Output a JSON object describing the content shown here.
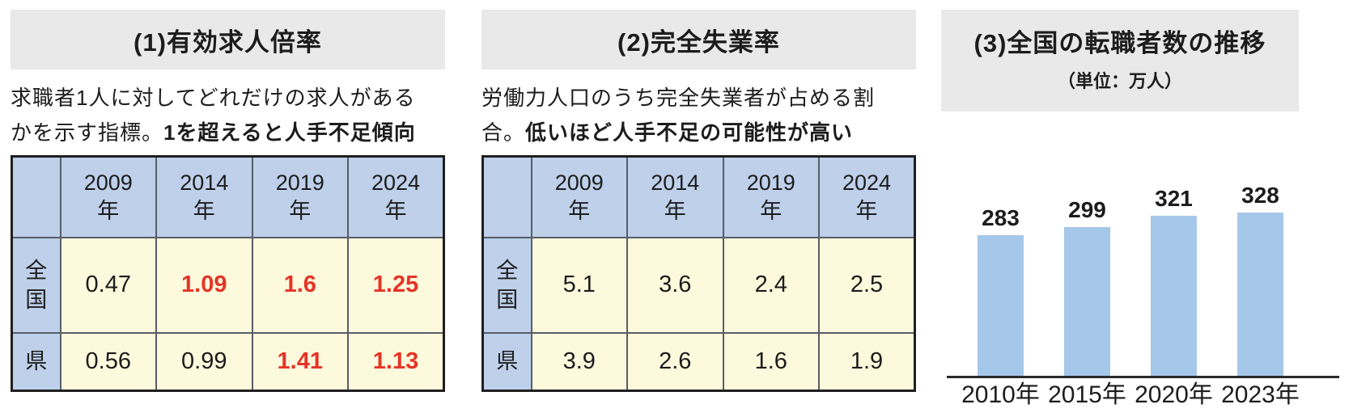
{
  "colors": {
    "panel_header_bg": "#e9e9e9",
    "table_header_bg": "#bed0ea",
    "table_cell_bg": "#fdf9dc",
    "highlight_red": "#e53427",
    "bar_fill": "#a5c7e9",
    "text": "#1c1c1c"
  },
  "panels": [
    {
      "desc_line1": "求職者1人に対してどれだけの求人がある",
      "desc_line2_plain": "かを示す指標。",
      "desc_line2_bold": "1を超えると人手不足傾向"
    },
    {
      "desc_line1": "労働力人口のうち完全失業者が占める割",
      "desc_line2_plain": "合。",
      "desc_line2_bold": "低いほど人手不足の可能性が高い"
    }
  ],
  "chart_data": [
    {
      "type": "table",
      "title": "(1)有効求人倍率",
      "col_years": [
        "2009",
        "2014",
        "2019",
        "2024"
      ],
      "col_suffix": "年",
      "rows": [
        {
          "label": "全国",
          "cells": [
            {
              "v": "0.47",
              "red": false
            },
            {
              "v": "1.09",
              "red": true
            },
            {
              "v": "1.6",
              "red": true
            },
            {
              "v": "1.25",
              "red": true
            }
          ]
        },
        {
          "label": "県",
          "cells": [
            {
              "v": "0.56",
              "red": false
            },
            {
              "v": "0.99",
              "red": false
            },
            {
              "v": "1.41",
              "red": true
            },
            {
              "v": "1.13",
              "red": true
            }
          ]
        }
      ]
    },
    {
      "type": "table",
      "title": "(2)完全失業率",
      "col_years": [
        "2009",
        "2014",
        "2019",
        "2024"
      ],
      "col_suffix": "年",
      "rows": [
        {
          "label": "全国",
          "cells": [
            {
              "v": "5.1",
              "red": false
            },
            {
              "v": "3.6",
              "red": false
            },
            {
              "v": "2.4",
              "red": false
            },
            {
              "v": "2.5",
              "red": false
            }
          ]
        },
        {
          "label": "県",
          "cells": [
            {
              "v": "3.9",
              "red": false
            },
            {
              "v": "2.6",
              "red": false
            },
            {
              "v": "1.6",
              "red": false
            },
            {
              "v": "1.9",
              "red": false
            }
          ]
        }
      ]
    },
    {
      "type": "bar",
      "title": "(3)全国の転職者数の推移",
      "unit_label": "（単位：万人）",
      "categories": [
        "2010年",
        "2015年",
        "2020年",
        "2023年"
      ],
      "values": [
        283,
        299,
        321,
        328
      ],
      "xlabel": "",
      "ylabel": "",
      "ylim": [
        0,
        350
      ],
      "grid": false,
      "legend": false,
      "bar_color": "#a5c7e9"
    }
  ]
}
